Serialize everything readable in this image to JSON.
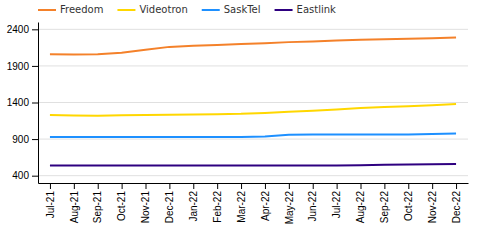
{
  "chart_data": {
    "type": "line",
    "categories": [
      "Jul-21",
      "Aug-21",
      "Sep-21",
      "Oct-21",
      "Nov-21",
      "Dec-21",
      "Jan-22",
      "Feb-22",
      "Mar-22",
      "Apr-22",
      "May-22",
      "Jun-22",
      "Jul-22",
      "Aug-22",
      "Sep-22",
      "Oct-22",
      "Nov-22",
      "Dec-22"
    ],
    "series": [
      {
        "name": "Freedom",
        "color": "#F4812A",
        "values": [
          2060,
          2055,
          2060,
          2080,
          2120,
          2160,
          2175,
          2185,
          2200,
          2210,
          2225,
          2235,
          2248,
          2258,
          2265,
          2270,
          2278,
          2288
        ]
      },
      {
        "name": "Videotron",
        "color": "#FFD700",
        "values": [
          1228,
          1222,
          1220,
          1225,
          1228,
          1232,
          1237,
          1240,
          1245,
          1258,
          1275,
          1288,
          1305,
          1325,
          1340,
          1350,
          1362,
          1378
        ]
      },
      {
        "name": "SaskTel",
        "color": "#1E90FF",
        "values": [
          928,
          928,
          928,
          928,
          928,
          928,
          928,
          928,
          928,
          936,
          960,
          962,
          962,
          962,
          962,
          964,
          968,
          975
        ]
      },
      {
        "name": "Eastlink",
        "color": "#2E0080",
        "values": [
          538,
          538,
          538,
          538,
          538,
          538,
          538,
          538,
          538,
          538,
          538,
          538,
          538,
          542,
          548,
          552,
          556,
          560
        ]
      }
    ],
    "ylim": [
      300,
      2500
    ],
    "yticks": [
      400,
      900,
      1400,
      1900,
      2400
    ],
    "grid": true,
    "legend": "top"
  }
}
